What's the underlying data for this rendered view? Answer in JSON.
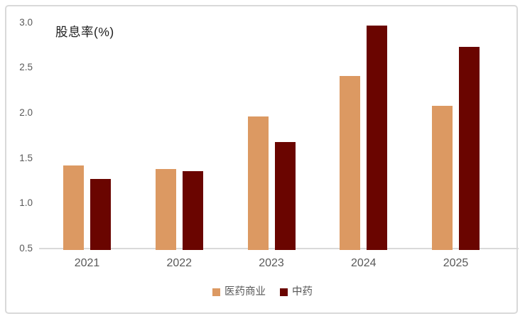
{
  "chart_data": {
    "type": "bar",
    "title": "股息率(%)",
    "categories": [
      "2021",
      "2022",
      "2023",
      "2024",
      "2025"
    ],
    "series": [
      {
        "name": "医药商业",
        "color": "#DC9962",
        "values": [
          1.42,
          1.38,
          1.96,
          2.41,
          2.08
        ]
      },
      {
        "name": "中药",
        "color": "#6A0500",
        "values": [
          1.27,
          1.36,
          1.68,
          2.97,
          2.73
        ]
      }
    ],
    "xlabel": "",
    "ylabel": "",
    "ylim": [
      0.5,
      3.0
    ],
    "yticks": [
      0.5,
      1.0,
      1.5,
      2.0,
      2.5,
      3.0
    ],
    "ytick_labels": [
      "0.5",
      "1.0",
      "1.5",
      "2.0",
      "2.5",
      "3.0"
    ],
    "grid": false,
    "legend_position": "bottom",
    "colors": {
      "axis_line": "#d9d9d9",
      "tick_text": "#595959",
      "category_text": "#595959",
      "legend_text": "#595959",
      "title_text": "#1f1f1f",
      "frame_border": "#d9d9d9",
      "background": "#ffffff"
    }
  }
}
